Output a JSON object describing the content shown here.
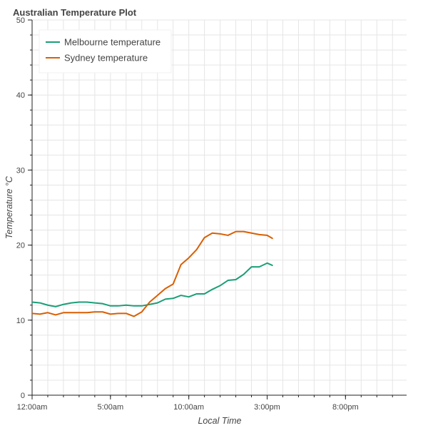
{
  "chart_data": {
    "type": "line",
    "title": "Australian Temperature Plot",
    "xlabel": "Local Time",
    "ylabel": "Temperature °C",
    "x_unit": "hours",
    "xlim": [
      0,
      23.9
    ],
    "ylim": [
      0,
      50
    ],
    "y_ticks": [
      0,
      10,
      20,
      30,
      40,
      50
    ],
    "x_ticks": [
      {
        "value": 0,
        "label": "12:00am"
      },
      {
        "value": 5,
        "label": "5:00am"
      },
      {
        "value": 10,
        "label": "10:00am"
      },
      {
        "value": 15,
        "label": "3:00pm"
      },
      {
        "value": 20,
        "label": "8:00pm"
      }
    ],
    "grid": true,
    "legend_position": "top-left",
    "series": [
      {
        "name": "Melbourne temperature",
        "color": "#1b9e77",
        "x": [
          0,
          0.5,
          1,
          1.5,
          2,
          2.5,
          3,
          3.5,
          4,
          4.5,
          5,
          5.5,
          6,
          6.5,
          7,
          7.5,
          8,
          8.5,
          9,
          9.5,
          10,
          10.5,
          11,
          11.5,
          12,
          12.5,
          13,
          13.5,
          14,
          14.5,
          15,
          15.33
        ],
        "y": [
          12.4,
          12.3,
          12.0,
          11.8,
          12.1,
          12.3,
          12.4,
          12.4,
          12.3,
          12.2,
          11.9,
          11.9,
          12.0,
          11.9,
          11.9,
          12.1,
          12.3,
          12.8,
          12.9,
          13.3,
          13.1,
          13.5,
          13.5,
          14.1,
          14.6,
          15.3,
          15.4,
          16.1,
          17.1,
          17.1,
          17.6,
          17.3
        ]
      },
      {
        "name": "Sydney temperature",
        "color": "#d95f02",
        "x": [
          0,
          0.5,
          1,
          1.5,
          2,
          2.5,
          3,
          3.5,
          4,
          4.5,
          5,
          5.5,
          6,
          6.5,
          7,
          7.5,
          8,
          8.5,
          9,
          9.5,
          10,
          10.5,
          11,
          11.5,
          12,
          12.5,
          13,
          13.5,
          14,
          14.5,
          15,
          15.33
        ],
        "y": [
          10.9,
          10.8,
          11.0,
          10.7,
          11.0,
          11.0,
          11.0,
          11.0,
          11.1,
          11.1,
          10.8,
          10.9,
          10.9,
          10.5,
          11.1,
          12.4,
          13.3,
          14.2,
          14.8,
          17.4,
          18.3,
          19.4,
          21.0,
          21.6,
          21.5,
          21.3,
          21.8,
          21.8,
          21.6,
          21.4,
          21.3,
          20.9
        ]
      }
    ]
  }
}
